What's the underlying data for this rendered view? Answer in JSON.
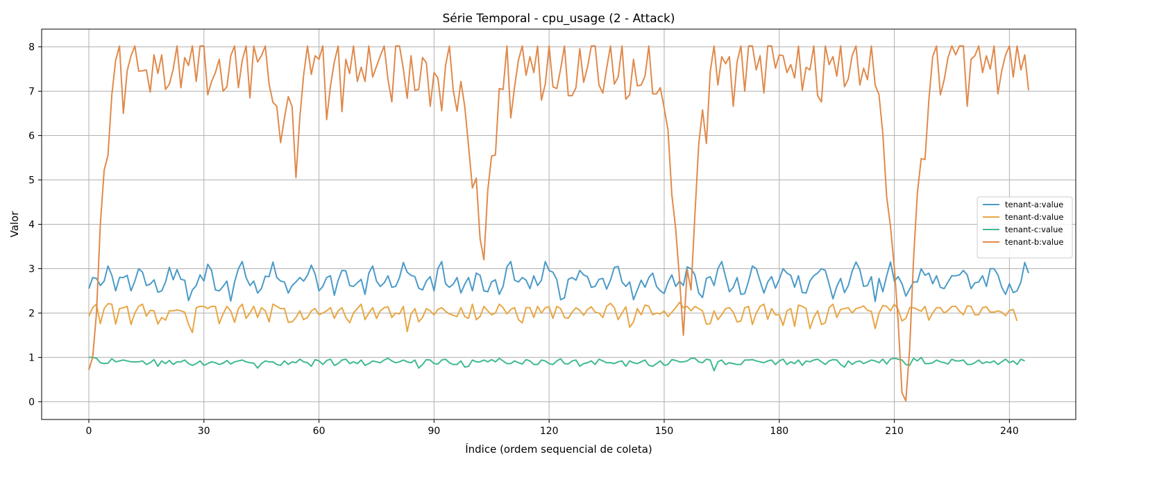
{
  "chart_data": {
    "type": "line",
    "title": "Série Temporal - cpu_usage (2 - Attack)",
    "xlabel": "Índice (ordem sequencial de coleta)",
    "ylabel": "Valor",
    "xlim": [
      -12.3,
      257.3
    ],
    "ylim": [
      -0.4,
      8.4
    ],
    "xticks": [
      0,
      30,
      60,
      90,
      120,
      150,
      180,
      210,
      240
    ],
    "yticks": [
      0,
      1,
      2,
      3,
      4,
      5,
      6,
      7,
      8
    ],
    "grid": true,
    "legend_position": "center-right",
    "series": [
      {
        "name": "tenant-a:value",
        "color": "#4a9ac8",
        "x_start": 0,
        "values": [
          2.55,
          2.8,
          2.78,
          2.62,
          2.72,
          3.06,
          2.85,
          2.5,
          2.8,
          2.8,
          2.85,
          2.5,
          2.72,
          3.0,
          2.92,
          2.62,
          2.65,
          2.75,
          2.47,
          2.5,
          2.7,
          3.03,
          2.75,
          2.98,
          2.76,
          2.74,
          2.28,
          2.52,
          2.62,
          2.86,
          2.72,
          3.1,
          2.96,
          2.52,
          2.5,
          2.6,
          2.72,
          2.27,
          2.7,
          3.0,
          3.16,
          2.8,
          2.62,
          2.72,
          2.45,
          2.55,
          2.83,
          2.82,
          3.15,
          2.8,
          2.72,
          2.7,
          2.45,
          2.62,
          2.7,
          2.8,
          2.72,
          2.85,
          3.08,
          2.88,
          2.5,
          2.6,
          2.8,
          2.84,
          2.4,
          2.74,
          2.96,
          2.95,
          2.62,
          2.6,
          2.68,
          2.76,
          2.42,
          2.9,
          3.06,
          2.72,
          2.6,
          2.68,
          2.84,
          2.58,
          2.6,
          2.8,
          3.14,
          2.92,
          2.85,
          2.82,
          2.56,
          2.52,
          2.72,
          2.82,
          2.5,
          3.0,
          3.16,
          2.66,
          2.58,
          2.65,
          2.8,
          2.45,
          2.65,
          2.8,
          2.5,
          2.9,
          2.85,
          2.5,
          2.48,
          2.7,
          2.75,
          2.42,
          2.6,
          3.04,
          3.16,
          2.74,
          2.7,
          2.8,
          2.74,
          2.55,
          2.84,
          2.62,
          2.74,
          3.16,
          2.96,
          2.92,
          2.75,
          2.3,
          2.34,
          2.76,
          2.8,
          2.74,
          2.96,
          2.86,
          2.82,
          2.58,
          2.6,
          2.76,
          2.78,
          2.54,
          2.74,
          3.03,
          3.05,
          2.7,
          2.6,
          2.7,
          2.3,
          2.52,
          2.74,
          2.58,
          2.8,
          2.9,
          2.6,
          2.5,
          2.44,
          2.7,
          2.86,
          2.6,
          2.72,
          2.62,
          3.04,
          3.0,
          2.86,
          2.45,
          2.35,
          2.78,
          2.82,
          2.62,
          3.0,
          3.16,
          2.82,
          2.48,
          2.58,
          2.8,
          2.42,
          2.44,
          2.72,
          3.06,
          3.0,
          2.72,
          2.45,
          2.7,
          2.82,
          2.56,
          2.76,
          3.0,
          2.9,
          2.85,
          2.58,
          2.84,
          2.46,
          2.45,
          2.72,
          2.84,
          2.9,
          3.0,
          2.96,
          2.65,
          2.32,
          2.6,
          2.78,
          2.46,
          2.62,
          2.94,
          3.15,
          2.98,
          2.6,
          2.62,
          2.82,
          2.26,
          2.78,
          2.48,
          2.84,
          3.15,
          2.72,
          2.82,
          2.66,
          2.38,
          2.54,
          2.7,
          2.7,
          3.0,
          2.85,
          2.9,
          2.66,
          2.84,
          2.58,
          2.55,
          2.7,
          2.84,
          2.84,
          2.86,
          2.96,
          2.86,
          2.55,
          2.68,
          2.7,
          2.84,
          2.6,
          3.0,
          3.0,
          2.86,
          2.58,
          2.42,
          2.66,
          2.46,
          2.5,
          2.7,
          3.14,
          2.9
        ]
      },
      {
        "name": "tenant-d:value",
        "color": "#e8a644",
        "x_start": 0,
        "values": [
          1.93,
          2.12,
          2.2,
          1.76,
          2.1,
          2.21,
          2.2,
          1.75,
          2.1,
          2.12,
          2.15,
          1.74,
          2.0,
          2.15,
          2.2,
          1.93,
          2.06,
          2.05,
          1.75,
          1.9,
          1.84,
          2.05,
          2.05,
          2.07,
          2.05,
          2.02,
          1.74,
          1.56,
          2.12,
          2.15,
          2.15,
          2.1,
          2.15,
          2.15,
          1.76,
          1.98,
          2.15,
          2.05,
          1.79,
          2.1,
          2.2,
          1.88,
          2.0,
          2.15,
          1.9,
          2.12,
          2.05,
          1.8,
          2.2,
          2.15,
          2.1,
          2.1,
          1.79,
          1.8,
          1.9,
          2.05,
          1.85,
          1.9,
          2.05,
          2.1,
          1.96,
          2.0,
          2.05,
          2.12,
          1.88,
          2.05,
          2.12,
          1.9,
          1.78,
          2.0,
          2.1,
          2.2,
          1.85,
          2.0,
          2.12,
          1.88,
          2.05,
          2.12,
          2.14,
          1.9,
          2.0,
          1.98,
          2.15,
          1.58,
          1.98,
          2.1,
          1.8,
          1.9,
          2.1,
          2.05,
          1.96,
          2.08,
          2.12,
          2.04,
          1.98,
          1.95,
          1.92,
          2.12,
          1.92,
          1.88,
          2.2,
          1.85,
          1.92,
          2.15,
          2.05,
          1.96,
          2.0,
          2.2,
          2.12,
          1.98,
          2.08,
          2.12,
          1.85,
          1.78,
          2.12,
          2.12,
          1.9,
          2.15,
          2.0,
          2.12,
          2.14,
          1.88,
          2.15,
          2.1,
          1.9,
          1.88,
          2.02,
          2.12,
          2.06,
          1.95,
          2.08,
          2.14,
          2.02,
          2.0,
          1.9,
          2.15,
          2.22,
          2.12,
          1.85,
          2.0,
          2.14,
          1.68,
          1.8,
          2.1,
          1.96,
          2.18,
          2.15,
          1.96,
          2.0,
          1.98,
          2.05,
          1.92,
          2.02,
          2.12,
          2.24,
          2.12,
          2.15,
          2.05,
          2.15,
          2.1,
          2.05,
          1.75,
          1.76,
          2.05,
          1.85,
          1.96,
          2.1,
          2.12,
          2.02,
          1.8,
          1.82,
          2.12,
          2.15,
          1.74,
          2.0,
          2.15,
          2.2,
          1.86,
          2.1,
          1.96,
          1.96,
          1.72,
          2.05,
          2.1,
          1.7,
          2.18,
          2.15,
          2.1,
          1.65,
          1.9,
          2.05,
          1.74,
          1.78,
          2.12,
          2.2,
          1.9,
          2.08,
          2.1,
          2.12,
          2.0,
          2.1,
          2.12,
          2.16,
          2.06,
          2.04,
          1.65,
          2.0,
          2.17,
          2.15,
          2.05,
          2.2,
          2.08,
          1.82,
          1.88,
          2.12,
          2.12,
          2.08,
          2.04,
          2.15,
          1.84,
          2.0,
          2.12,
          2.12,
          2.0,
          2.06,
          2.15,
          2.15,
          2.04,
          1.96,
          2.16,
          2.15,
          1.96,
          1.96,
          2.12,
          2.14,
          2.02,
          2.02,
          2.05,
          2.02,
          1.94,
          2.06,
          2.08,
          1.82
        ]
      },
      {
        "name": "tenant-c:value",
        "color": "#3fba8c",
        "x_start": 0,
        "values": [
          1.0,
          1.0,
          0.98,
          0.88,
          0.86,
          0.87,
          0.97,
          0.9,
          0.92,
          0.94,
          0.92,
          0.9,
          0.9,
          0.9,
          0.92,
          0.84,
          0.88,
          0.95,
          0.8,
          0.92,
          0.86,
          0.93,
          0.84,
          0.9,
          0.9,
          0.94,
          0.86,
          0.82,
          0.86,
          0.92,
          0.82,
          0.86,
          0.9,
          0.88,
          0.84,
          0.87,
          0.93,
          0.85,
          0.9,
          0.92,
          0.94,
          0.9,
          0.88,
          0.87,
          0.76,
          0.86,
          0.92,
          0.9,
          0.9,
          0.84,
          0.82,
          0.92,
          0.84,
          0.9,
          0.88,
          0.96,
          0.9,
          0.88,
          0.8,
          0.95,
          0.92,
          0.84,
          0.93,
          0.96,
          0.82,
          0.86,
          0.94,
          0.96,
          0.86,
          0.9,
          0.86,
          0.94,
          0.82,
          0.86,
          0.92,
          0.9,
          0.88,
          0.94,
          0.98,
          0.92,
          0.88,
          0.9,
          0.94,
          0.9,
          0.88,
          0.94,
          0.76,
          0.84,
          0.95,
          0.94,
          0.86,
          0.85,
          0.94,
          0.96,
          0.88,
          0.84,
          0.84,
          0.92,
          0.78,
          0.8,
          0.94,
          0.9,
          0.9,
          0.94,
          0.9,
          0.95,
          0.9,
          0.98,
          0.92,
          0.86,
          0.86,
          0.92,
          0.88,
          0.85,
          0.95,
          0.92,
          0.84,
          0.84,
          0.94,
          0.92,
          0.86,
          0.84,
          0.92,
          0.97,
          0.86,
          0.85,
          0.92,
          0.94,
          0.8,
          0.86,
          0.88,
          0.92,
          0.84,
          0.96,
          0.92,
          0.88,
          0.88,
          0.86,
          0.9,
          0.92,
          0.8,
          0.92,
          0.88,
          0.86,
          0.9,
          0.94,
          0.82,
          0.8,
          0.86,
          0.92,
          0.82,
          0.84,
          0.95,
          0.93,
          0.9,
          0.9,
          0.92,
          0.98,
          0.98,
          0.9,
          0.88,
          0.96,
          0.94,
          0.7,
          0.9,
          0.94,
          0.84,
          0.88,
          0.86,
          0.84,
          0.84,
          0.94,
          0.94,
          0.95,
          0.92,
          0.9,
          0.88,
          0.92,
          0.94,
          0.84,
          0.92,
          0.96,
          0.84,
          0.9,
          0.86,
          0.94,
          0.82,
          0.92,
          0.9,
          0.94,
          0.96,
          0.9,
          0.84,
          0.92,
          0.95,
          0.94,
          0.84,
          0.78,
          0.92,
          0.84,
          0.9,
          0.92,
          0.86,
          0.9,
          0.94,
          0.92,
          0.88,
          0.96,
          0.85,
          0.96,
          0.98,
          0.96,
          0.94,
          0.84,
          0.82,
          0.98,
          0.92,
          1.0,
          0.86,
          0.86,
          0.88,
          0.94,
          0.9,
          0.88,
          0.85,
          0.96,
          0.92,
          0.92,
          0.94,
          0.84,
          0.84,
          0.88,
          0.94,
          0.86,
          0.9,
          0.88,
          0.92,
          0.84,
          0.9,
          0.96,
          0.88,
          0.92,
          0.84,
          0.96,
          0.92
        ]
      },
      {
        "name": "tenant-b:value",
        "color": "#e0894a",
        "x_start": 0,
        "values": [
          0.72,
          1.0,
          2.0,
          4.0,
          5.22,
          5.56,
          6.92,
          7.7,
          8.02,
          6.5,
          7.46,
          7.8,
          8.02,
          7.45,
          7.46,
          7.48,
          6.98,
          7.82,
          7.4,
          7.82,
          7.04,
          7.16,
          7.5,
          8.02,
          7.08,
          7.76,
          7.58,
          8.02,
          7.22,
          8.02,
          8.02,
          6.92,
          7.22,
          7.42,
          7.72,
          7.0,
          7.1,
          7.8,
          8.02,
          7.08,
          7.7,
          8.02,
          6.85,
          8.02,
          7.66,
          7.8,
          8.02,
          7.16,
          6.75,
          6.66,
          5.84,
          6.4,
          6.88,
          6.65,
          5.05,
          6.4,
          7.36,
          8.02,
          7.38,
          7.8,
          7.72,
          8.02,
          6.36,
          7.12,
          7.66,
          8.02,
          6.54,
          7.72,
          7.4,
          8.02,
          7.22,
          7.54,
          7.22,
          8.02,
          7.32,
          7.56,
          7.8,
          8.02,
          7.26,
          6.76,
          8.02,
          8.02,
          7.5,
          6.84,
          7.8,
          7.02,
          7.04,
          7.76,
          7.64,
          6.66,
          7.42,
          7.3,
          6.56,
          7.58,
          8.02,
          7.02,
          6.55,
          7.22,
          6.66,
          5.76,
          4.82,
          5.04,
          3.68,
          3.2,
          4.76,
          5.54,
          5.56,
          7.06,
          7.04,
          8.02,
          6.4,
          7.1,
          7.7,
          8.02,
          7.36,
          7.78,
          7.42,
          8.02,
          6.8,
          7.16,
          8.02,
          7.1,
          7.06,
          7.5,
          8.02,
          6.9,
          6.9,
          7.08,
          7.96,
          7.2,
          7.54,
          8.02,
          8.02,
          7.14,
          6.96,
          7.52,
          8.02,
          7.16,
          7.32,
          8.02,
          6.82,
          6.92,
          7.72,
          7.12,
          7.14,
          7.34,
          8.02,
          6.94,
          6.94,
          7.08,
          6.62,
          6.12,
          4.66,
          3.9,
          2.76,
          1.5,
          2.98,
          2.52,
          4.2,
          5.8,
          6.58,
          5.82,
          7.44,
          8.02,
          7.14,
          7.78,
          7.62,
          7.78,
          6.66,
          7.66,
          8.02,
          7.0,
          8.02,
          8.02,
          7.48,
          7.8,
          6.96,
          8.02,
          8.02,
          7.52,
          7.82,
          7.8,
          7.42,
          7.6,
          7.3,
          8.02,
          7.02,
          7.54,
          7.48,
          8.02,
          6.9,
          6.76,
          8.02,
          7.6,
          7.78,
          7.34,
          8.02,
          7.1,
          7.28,
          7.8,
          8.02,
          7.14,
          7.52,
          7.26,
          8.02,
          7.14,
          6.92,
          6.04,
          4.62,
          3.95,
          3.02,
          1.8,
          0.2,
          0.02,
          1.2,
          3.2,
          4.7,
          5.48,
          5.46,
          6.8,
          7.78,
          8.02,
          6.92,
          7.26,
          7.76,
          8.02,
          7.82,
          8.02,
          8.02,
          6.66,
          7.72,
          7.8,
          8.02,
          7.42,
          7.8,
          7.5,
          8.02,
          6.94,
          7.46,
          7.82,
          8.02,
          7.32,
          8.02,
          7.48,
          7.82,
          7.02
        ]
      }
    ]
  }
}
